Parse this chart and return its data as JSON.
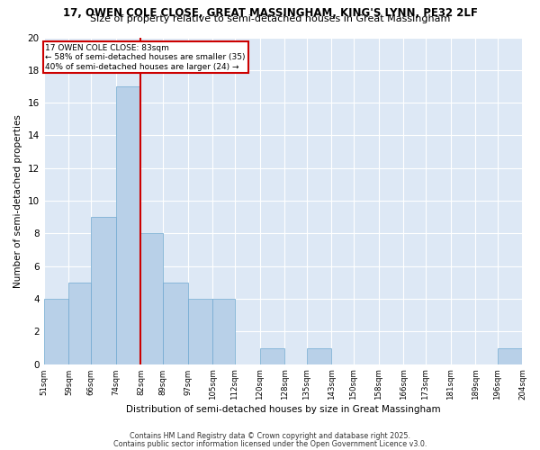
{
  "title_line1": "17, OWEN COLE CLOSE, GREAT MASSINGHAM, KING'S LYNN, PE32 2LF",
  "title_line2": "Size of property relative to semi-detached houses in Great Massingham",
  "xlabel": "Distribution of semi-detached houses by size in Great Massingham",
  "ylabel": "Number of semi-detached properties",
  "bin_labels": [
    "51sqm",
    "59sqm",
    "66sqm",
    "74sqm",
    "82sqm",
    "89sqm",
    "97sqm",
    "105sqm",
    "112sqm",
    "120sqm",
    "128sqm",
    "135sqm",
    "143sqm",
    "150sqm",
    "158sqm",
    "166sqm",
    "173sqm",
    "181sqm",
    "189sqm",
    "196sqm",
    "204sqm"
  ],
  "bar_values": [
    4,
    5,
    9,
    17,
    8,
    5,
    4,
    4,
    0,
    1,
    0,
    1,
    0,
    0,
    0,
    0,
    0,
    0,
    0,
    1
  ],
  "bar_color": "#b8d0e8",
  "bar_edge_color": "#6fa8d0",
  "red_line_bin_index": 4,
  "red_line_color": "#cc0000",
  "annotation_title": "17 OWEN COLE CLOSE: 83sqm",
  "annotation_line2": "← 58% of semi-detached houses are smaller (35)",
  "annotation_line3": "40% of semi-detached houses are larger (24) →",
  "annotation_box_color": "#ffffff",
  "annotation_border_color": "#cc0000",
  "ylim": [
    0,
    20
  ],
  "yticks": [
    0,
    2,
    4,
    6,
    8,
    10,
    12,
    14,
    16,
    18,
    20
  ],
  "background_color": "#dde8f5",
  "footer_line1": "Contains HM Land Registry data © Crown copyright and database right 2025.",
  "footer_line2": "Contains public sector information licensed under the Open Government Licence v3.0.",
  "bin_edges": [
    51,
    59,
    66,
    74,
    82,
    89,
    97,
    105,
    112,
    120,
    128,
    135,
    143,
    150,
    158,
    166,
    173,
    181,
    189,
    196,
    204
  ]
}
